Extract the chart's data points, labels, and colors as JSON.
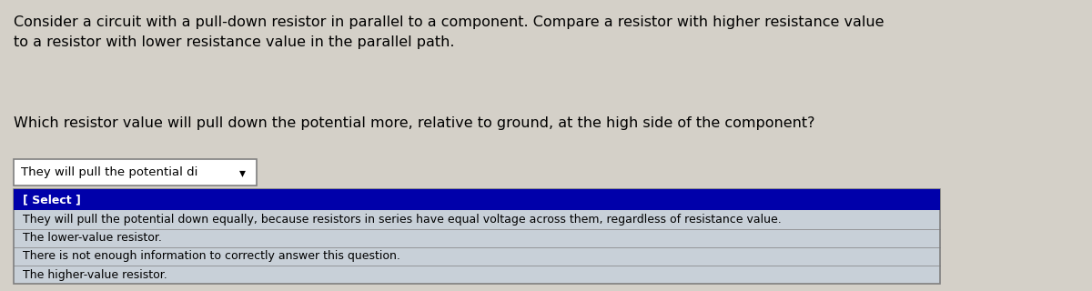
{
  "bg_color": "#d4d0c8",
  "paragraph1": "Consider a circuit with a pull-down resistor in parallel to a component. Compare a resistor with higher resistance value\nto a resistor with lower resistance value in the parallel path.",
  "paragraph2": "Which resistor value will pull down the potential more, relative to ground, at the high side of the component?",
  "dropdown_text": "They will pull the potential di",
  "dropdown_box_color": "#ffffff",
  "dropdown_border_color": "#7f7f7f",
  "select_label": "[ Select ]",
  "select_bg_color": "#0000aa",
  "select_text_color": "#ffffff",
  "options": [
    "They will pull the potential down equally, because resistors in series have equal voltage across them, regardless of resistance value.",
    "The lower-value resistor.",
    "There is not enough information to correctly answer this question.",
    "The higher-value resistor."
  ],
  "options_bg_color": "#c8d0d8",
  "options_border_color": "#7f7f7f",
  "font_size_para": 11.5,
  "font_size_dropdown": 9.5,
  "font_size_options": 9.0,
  "text_color": "#000000"
}
